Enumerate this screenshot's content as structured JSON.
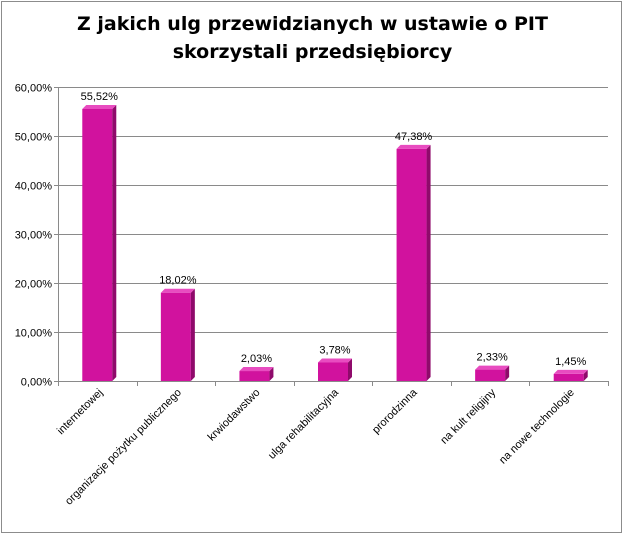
{
  "chart_data": {
    "type": "bar",
    "title_lines": [
      "Z jakich ulg przewidzianych w ustawie o PIT",
      "skorzystali przedsiębiorcy"
    ],
    "categories": [
      "internetowej",
      "organizacje pożytku publicznego",
      "krwiodawstwo",
      "ulga rehabilitacyjna",
      "prorodzinna",
      "na kult religijny",
      "na nowe technologie"
    ],
    "values": [
      55.52,
      18.02,
      2.03,
      3.78,
      47.38,
      2.33,
      1.45
    ],
    "value_labels": [
      "55,52%",
      "18,02%",
      "2,03%",
      "3,78%",
      "47,38%",
      "2,33%",
      "1,45%"
    ],
    "y_ticks": [
      0,
      10,
      20,
      30,
      40,
      50,
      60
    ],
    "y_tick_labels": [
      "0,00%",
      "10,00%",
      "20,00%",
      "30,00%",
      "40,00%",
      "50,00%",
      "60,00%"
    ],
    "ylim": [
      0,
      60
    ],
    "grid": true,
    "legend": false,
    "bar_color": "#d1129e",
    "bar_dark": "#8f0a6b",
    "bar_light": "#e84cc0"
  }
}
